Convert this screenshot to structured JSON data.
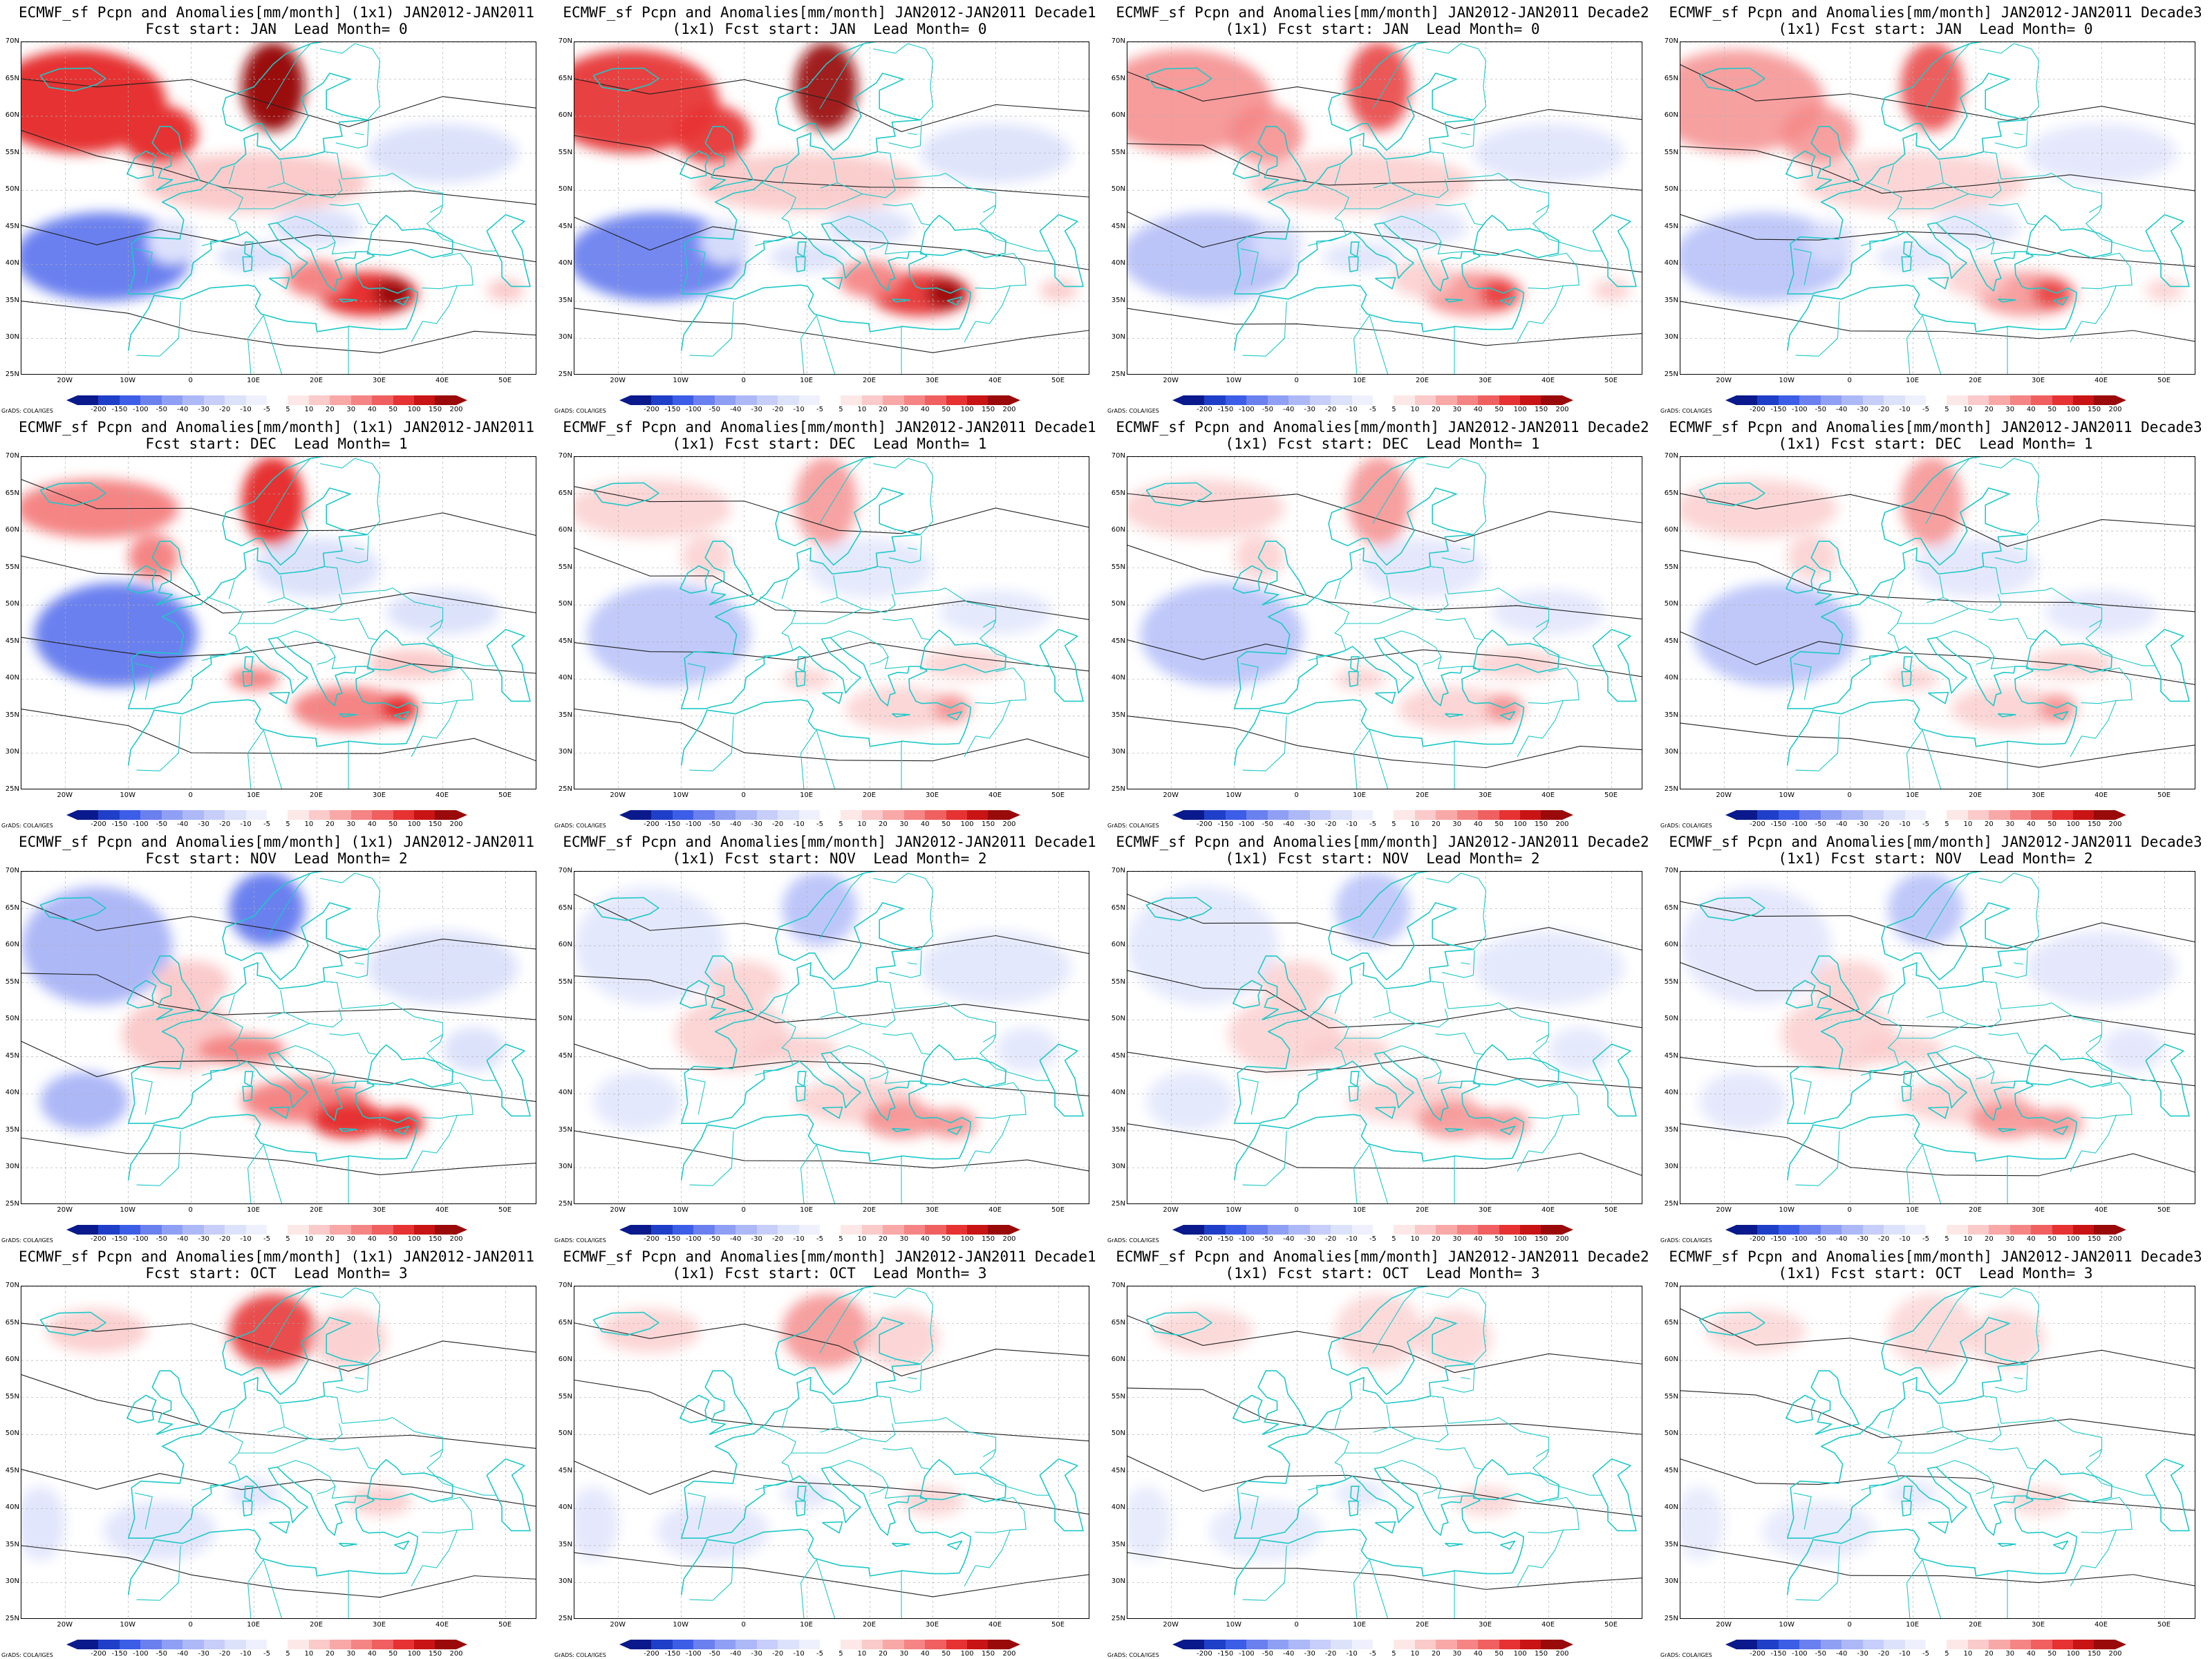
{
  "panels": [
    {
      "title_line1": "ECMWF_sf Pcpn and Anomalies[mm/month] (1x1) JAN2012-JAN2011",
      "title_line2": "Fcst start: JAN  Lead Month= 0",
      "row": 0,
      "col": 0,
      "theme": "strong-red-north",
      "intensity": 1.0
    },
    {
      "title_line1": "ECMWF_sf Pcpn and Anomalies[mm/month] JAN2012-JAN2011 Decade1",
      "title_line2": "(1x1) Fcst start: JAN  Lead Month= 0",
      "row": 0,
      "col": 1,
      "theme": "strong-red-north",
      "intensity": 0.85
    },
    {
      "title_line1": "ECMWF_sf Pcpn and Anomalies[mm/month] JAN2012-JAN2011 Decade2",
      "title_line2": "(1x1) Fcst start: JAN  Lead Month= 0",
      "row": 0,
      "col": 2,
      "theme": "strong-red-north",
      "intensity": 0.6
    },
    {
      "title_line1": "ECMWF_sf Pcpn and Anomalies[mm/month] JAN2012-JAN2011 Decade3",
      "title_line2": "(1x1) Fcst start: JAN  Lead Month= 0",
      "row": 0,
      "col": 3,
      "theme": "strong-red-north",
      "intensity": 0.5
    },
    {
      "title_line1": "ECMWF_sf Pcpn and Anomalies[mm/month] (1x1) JAN2012-JAN2011",
      "title_line2": "Fcst start: DEC  Lead Month= 1",
      "row": 1,
      "col": 0,
      "theme": "red-north-blue-west",
      "intensity": 1.0
    },
    {
      "title_line1": "ECMWF_sf Pcpn and Anomalies[mm/month] JAN2012-JAN2011 Decade1",
      "title_line2": "(1x1) Fcst start: DEC  Lead Month= 1",
      "row": 1,
      "col": 1,
      "theme": "red-north-blue-west",
      "intensity": 0.45
    },
    {
      "title_line1": "ECMWF_sf Pcpn and Anomalies[mm/month] JAN2012-JAN2011 Decade2",
      "title_line2": "(1x1) Fcst start: DEC  Lead Month= 1",
      "row": 1,
      "col": 2,
      "theme": "red-north-blue-west",
      "intensity": 0.5
    },
    {
      "title_line1": "ECMWF_sf Pcpn and Anomalies[mm/month] JAN2012-JAN2011 Decade3",
      "title_line2": "(1x1) Fcst start: DEC  Lead Month= 1",
      "row": 1,
      "col": 3,
      "theme": "red-north-blue-west",
      "intensity": 0.5
    },
    {
      "title_line1": "ECMWF_sf Pcpn and Anomalies[mm/month] (1x1) JAN2012-JAN2011",
      "title_line2": "Fcst start: NOV  Lead Month= 2",
      "row": 2,
      "col": 0,
      "theme": "blue-north-red-south",
      "intensity": 1.0
    },
    {
      "title_line1": "ECMWF_sf Pcpn and Anomalies[mm/month] JAN2012-JAN2011 Decade1",
      "title_line2": "(1x1) Fcst start: NOV  Lead Month= 2",
      "row": 2,
      "col": 1,
      "theme": "blue-north-red-south",
      "intensity": 0.55
    },
    {
      "title_line1": "ECMWF_sf Pcpn and Anomalies[mm/month] JAN2012-JAN2011 Decade2",
      "title_line2": "(1x1) Fcst start: NOV  Lead Month= 2",
      "row": 2,
      "col": 2,
      "theme": "blue-north-red-south",
      "intensity": 0.45
    },
    {
      "title_line1": "ECMWF_sf Pcpn and Anomalies[mm/month] JAN2012-JAN2011 Decade3",
      "title_line2": "(1x1) Fcst start: NOV  Lead Month= 2",
      "row": 2,
      "col": 3,
      "theme": "blue-north-red-south",
      "intensity": 0.5
    },
    {
      "title_line1": "ECMWF_sf Pcpn and Anomalies[mm/month] (1x1) JAN2012-JAN2011",
      "title_line2": "Fcst start: OCT  Lead Month= 3",
      "row": 3,
      "col": 0,
      "theme": "weak-red-north",
      "intensity": 0.7
    },
    {
      "title_line1": "ECMWF_sf Pcpn and Anomalies[mm/month] JAN2012-JAN2011 Decade1",
      "title_line2": "(1x1) Fcst start: OCT  Lead Month= 3",
      "row": 3,
      "col": 1,
      "theme": "weak-red-north",
      "intensity": 0.5
    },
    {
      "title_line1": "ECMWF_sf Pcpn and Anomalies[mm/month] JAN2012-JAN2011 Decade2",
      "title_line2": "(1x1) Fcst start: OCT  Lead Month= 3",
      "row": 3,
      "col": 2,
      "theme": "weak-red-north",
      "intensity": 0.35
    },
    {
      "title_line1": "ECMWF_sf Pcpn and Anomalies[mm/month] JAN2012-JAN2011 Decade3",
      "title_line2": "(1x1) Fcst start: OCT  Lead Month= 3",
      "row": 3,
      "col": 3,
      "theme": "weak-red-north",
      "intensity": 0.3
    }
  ],
  "lat_labels": [
    "70N",
    "65N",
    "60N",
    "55N",
    "50N",
    "45N",
    "40N",
    "35N",
    "30N",
    "25N"
  ],
  "lon_labels": [
    "20W",
    "10W",
    "0",
    "10E",
    "20E",
    "30E",
    "40E",
    "50E"
  ],
  "colorbar": {
    "labels": [
      "-200",
      "-150",
      "-100",
      "-50",
      "-40",
      "-30",
      "-20",
      "-10",
      "-5",
      "5",
      "10",
      "20",
      "30",
      "40",
      "50",
      "100",
      "150",
      "200"
    ],
    "colors": [
      "#0a1a8c",
      "#1f3fc8",
      "#3c5de6",
      "#6a80ef",
      "#8f9ff4",
      "#adb8f7",
      "#c6cef9",
      "#dde2fb",
      "#eef0fd",
      "#ffffff",
      "#fde8e8",
      "#fbcaca",
      "#f9a8a8",
      "#f58585",
      "#f06060",
      "#e63232",
      "#c81414",
      "#9a0a0a"
    ]
  },
  "credit": "GrADS: COLA/IGES",
  "colors": {
    "coast": "#1ec8c8",
    "contour": "#202020",
    "grid": "#b0b0b0"
  }
}
